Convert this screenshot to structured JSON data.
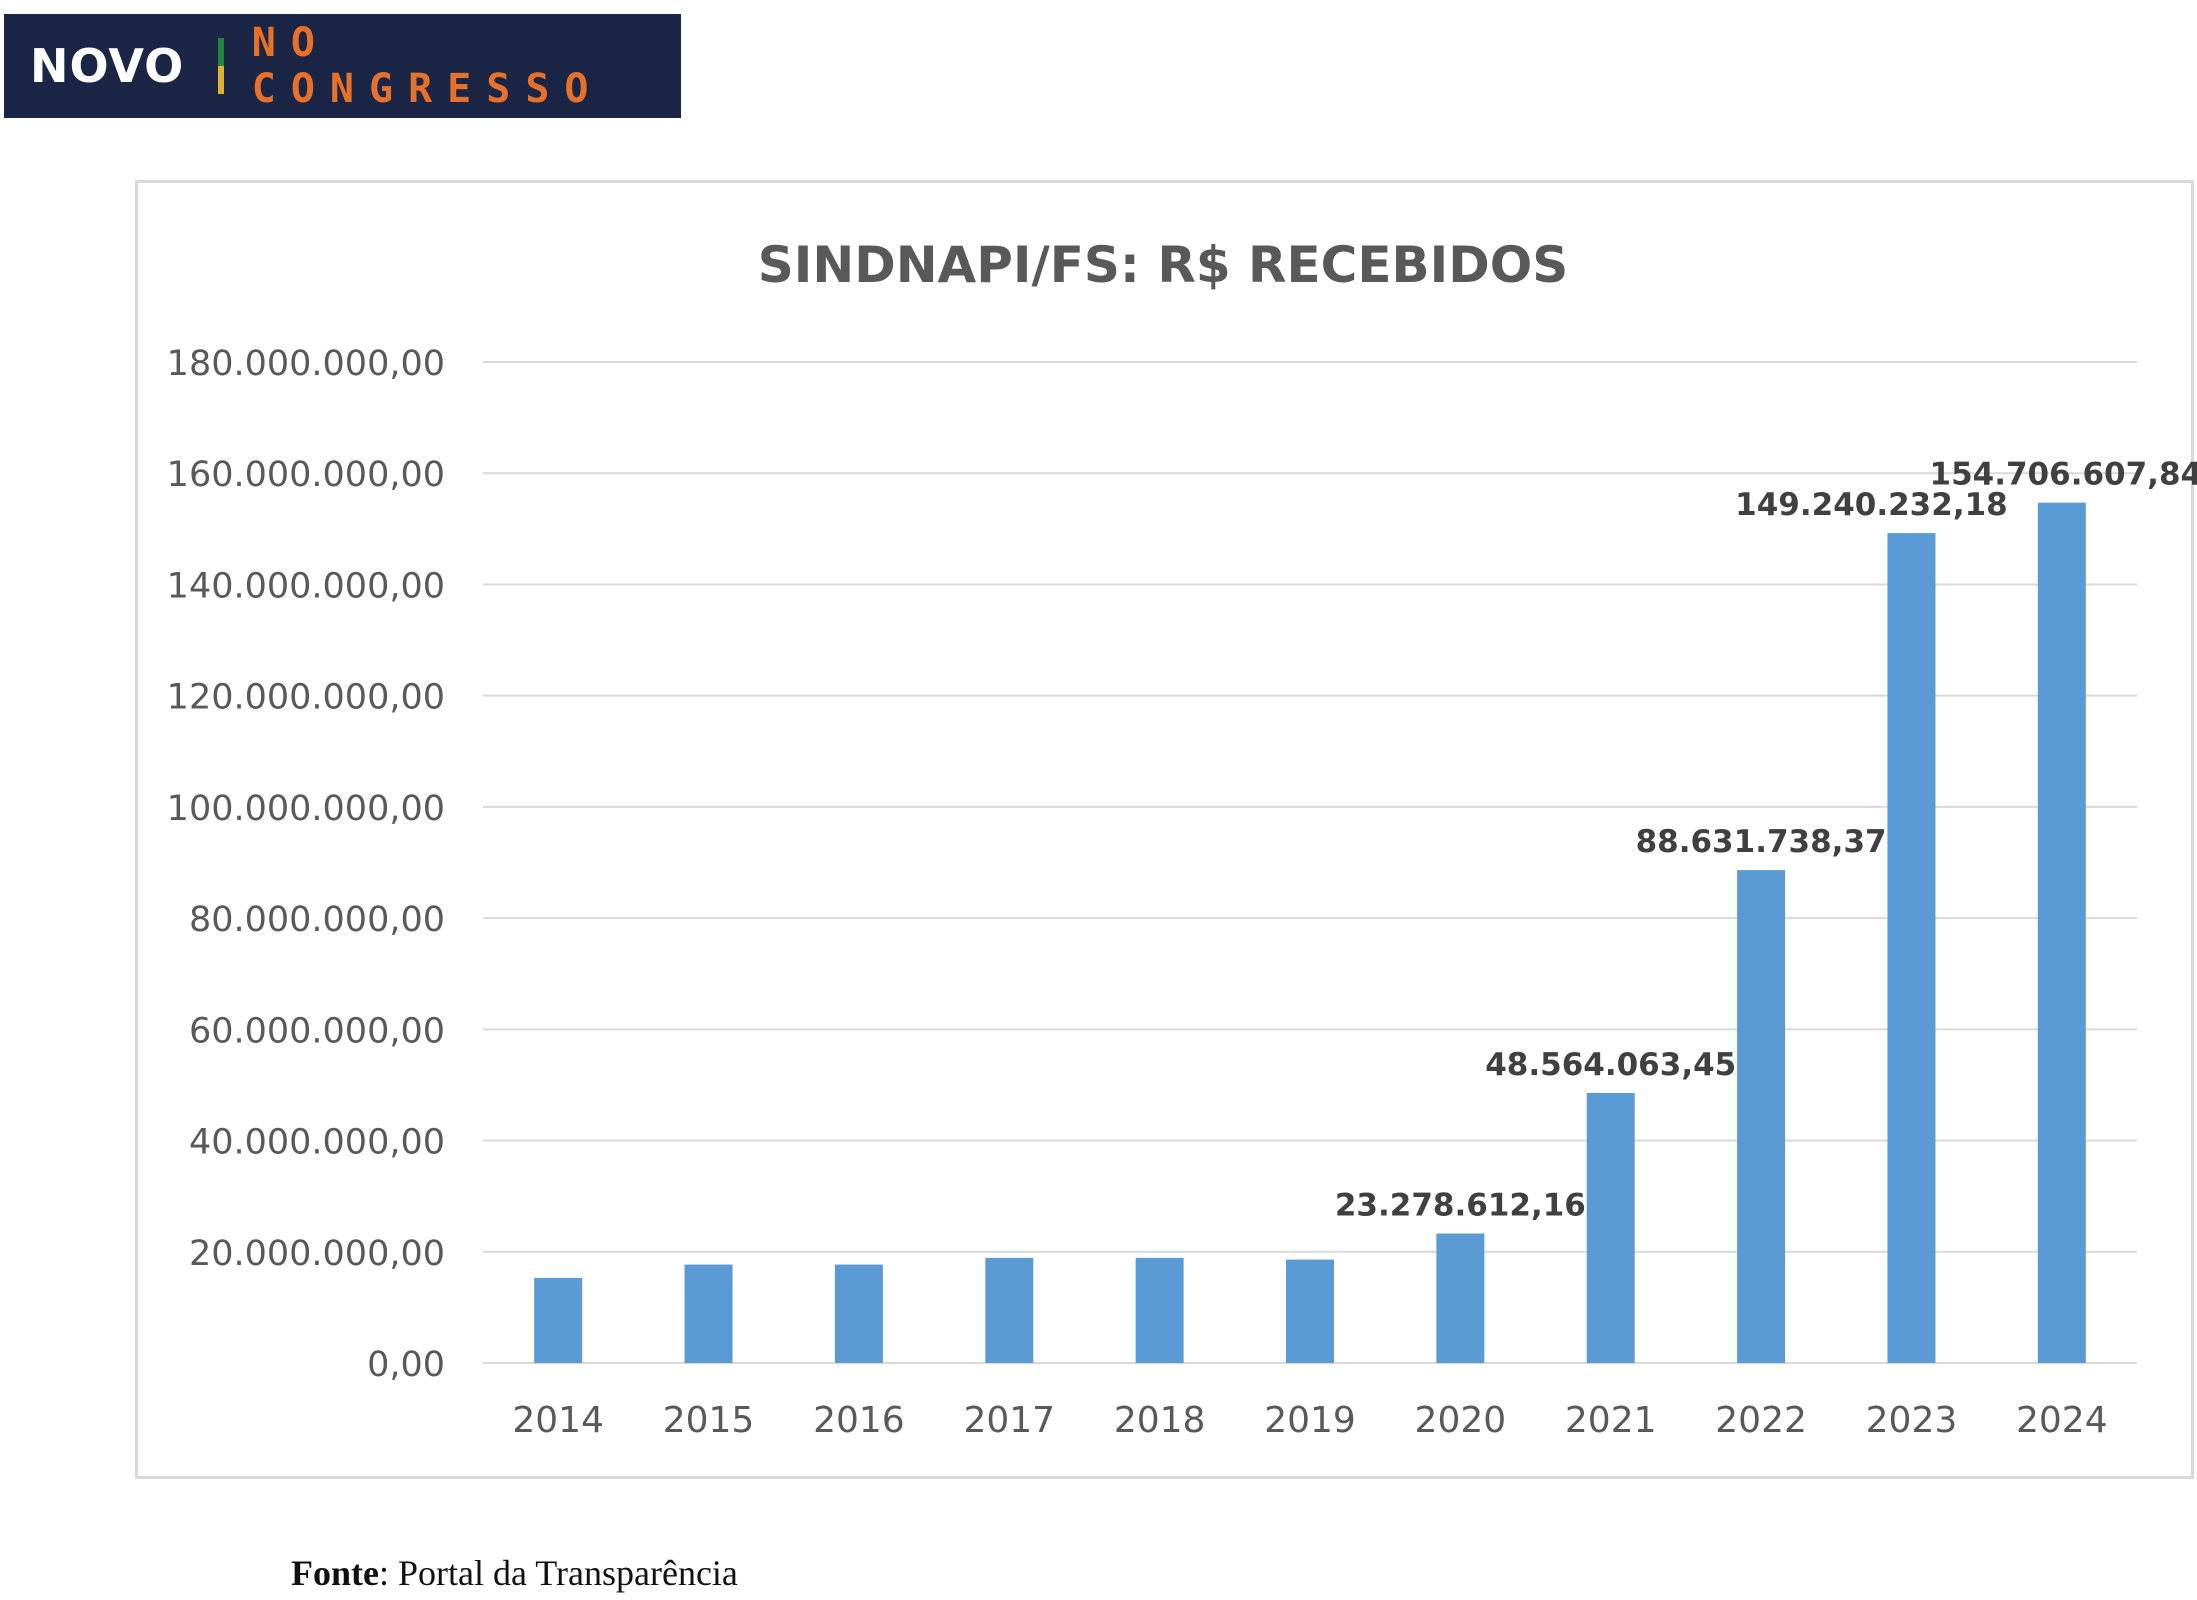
{
  "logo": {
    "brand": "NOVO",
    "tagline": "NO CONGRESSO"
  },
  "source": {
    "label": "Fonte",
    "text": ": Portal da Transparência"
  },
  "chart_data": {
    "type": "bar",
    "title": "SINDNAPI/FS: R$ RECEBIDOS",
    "xlabel": "",
    "ylabel": "",
    "categories": [
      "2014",
      "2015",
      "2016",
      "2017",
      "2018",
      "2019",
      "2020",
      "2021",
      "2022",
      "2023",
      "2024"
    ],
    "values": [
      15300000,
      17700000,
      17700000,
      18900000,
      18900000,
      18600000,
      23278612.16,
      48564063.45,
      88631738.37,
      149240232.18,
      154706607.84
    ],
    "data_labels": [
      "",
      "",
      "",
      "",
      "",
      "",
      "23.278.612,16",
      "48.564.063,45",
      "88.631.738,37",
      "149.240.232,18",
      "154.706.607,84"
    ],
    "ylim": [
      0,
      180000000
    ],
    "yticks": [
      0,
      20000000,
      40000000,
      60000000,
      80000000,
      100000000,
      120000000,
      140000000,
      160000000,
      180000000
    ],
    "ytick_labels": [
      "0,00",
      "20.000.000,00",
      "40.000.000,00",
      "60.000.000,00",
      "80.000.000,00",
      "100.000.000,00",
      "120.000.000,00",
      "140.000.000,00",
      "160.000.000,00",
      "180.000.000,00"
    ],
    "grid": true,
    "legend": "none",
    "bar_color": "#5b9bd5"
  }
}
